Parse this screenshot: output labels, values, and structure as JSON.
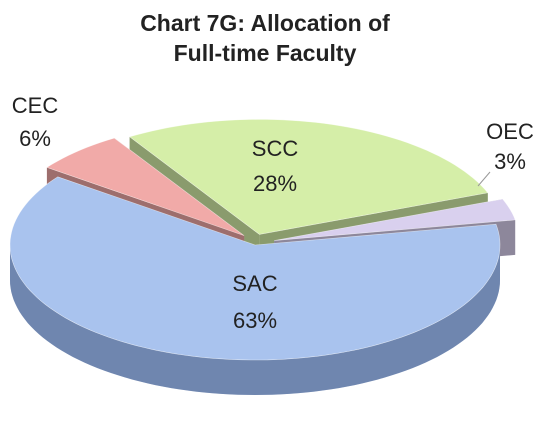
{
  "chart_data": {
    "type": "pie",
    "title": "Chart 7G: Allocation of Full-time Faculty",
    "categories": [
      "SCC",
      "OEC",
      "SAC",
      "CEC"
    ],
    "values": [
      28,
      3,
      63,
      6
    ],
    "value_labels": [
      "28%",
      "3%",
      "63%",
      "6%"
    ],
    "colors": [
      "#d5eea8",
      "#d9d0ee",
      "#a9c3ee",
      "#f1aaa8"
    ]
  }
}
